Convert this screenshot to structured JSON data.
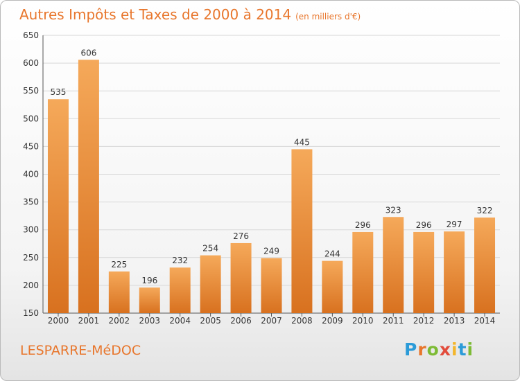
{
  "header": {
    "title": "Autres Impôts et Taxes de 2000 à 2014",
    "unit": "(en milliers d'€)"
  },
  "footer": {
    "commune": "LESPARRE-MéDOC",
    "logo_letters": [
      "P",
      "r",
      "o",
      "x",
      "i",
      "t",
      "i"
    ],
    "logo_colors": [
      "#2b9bd8",
      "#e8762c",
      "#7dbb35",
      "#e24b3b",
      "#f3b62c",
      "#2b9bd8",
      "#7dbb35"
    ]
  },
  "colors": {
    "bar_top": "#f5a95a",
    "bar_bottom": "#d8711f",
    "title": "#e8762c",
    "grid": "#d7d7d7"
  },
  "chart_data": {
    "type": "bar",
    "title": "Autres Impôts et Taxes de 2000 à 2014",
    "subtitle": "(en milliers d'€)",
    "xlabel": "",
    "ylabel": "",
    "categories": [
      "2000",
      "2001",
      "2002",
      "2003",
      "2004",
      "2005",
      "2006",
      "2007",
      "2008",
      "2009",
      "2010",
      "2011",
      "2012",
      "2013",
      "2014"
    ],
    "values": [
      535,
      606,
      225,
      196,
      232,
      254,
      276,
      249,
      445,
      244,
      296,
      323,
      296,
      297,
      322
    ],
    "ylim": [
      150,
      650
    ],
    "yticks": [
      150,
      200,
      250,
      300,
      350,
      400,
      450,
      500,
      550,
      600,
      650
    ],
    "grid": true,
    "legend": "none"
  }
}
